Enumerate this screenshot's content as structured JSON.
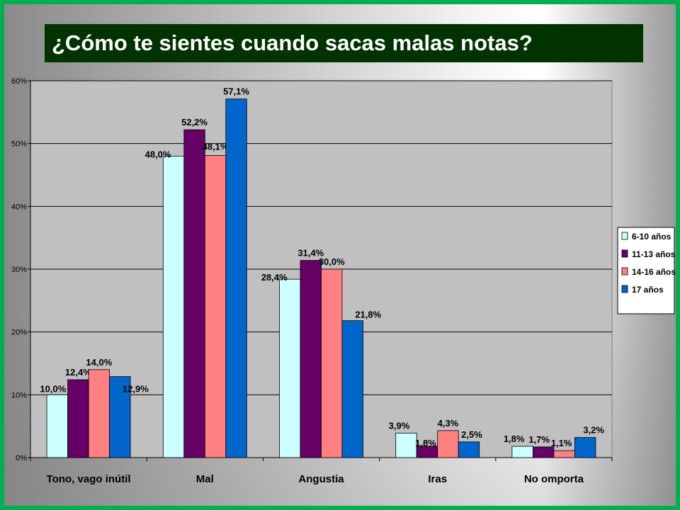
{
  "slide": {
    "title": "¿Cómo te sientes cuando sacas malas notas?"
  },
  "chart_data": {
    "type": "bar",
    "categories": [
      "Tono, vago inútil",
      "Mal",
      "Angustia",
      "Iras",
      "No omporta"
    ],
    "series": [
      {
        "name": "6-10 años",
        "color": "#ccffff",
        "values": [
          10.0,
          48.0,
          28.4,
          3.9,
          1.8
        ],
        "labels": [
          "10,0%",
          "48,0%",
          "28,4%",
          "3,9%",
          "1,8%"
        ]
      },
      {
        "name": "11-13 años",
        "color": "#660066",
        "values": [
          12.4,
          52.2,
          31.4,
          1.8,
          1.7
        ],
        "labels": [
          "12,4%",
          "52,2%",
          "31,4%",
          "1,8%",
          "1,7%"
        ]
      },
      {
        "name": "14-16 años",
        "color": "#ff8080",
        "values": [
          14.0,
          48.1,
          30.0,
          4.3,
          1.1
        ],
        "labels": [
          "14,0%",
          "48,1%",
          "30,0%",
          "4,3%",
          "1,1%"
        ]
      },
      {
        "name": "17 años",
        "color": "#0066cc",
        "values": [
          12.9,
          57.1,
          21.8,
          2.5,
          3.2
        ],
        "labels": [
          "12,9%",
          "57,1%",
          "21,8%",
          "2,5%",
          "3,2%"
        ]
      }
    ],
    "ylim": [
      0,
      60
    ],
    "yticks": [
      0,
      10,
      20,
      30,
      40,
      50,
      60
    ],
    "ytick_labels": [
      "0%",
      "10%",
      "20%",
      "30%",
      "40%",
      "50%",
      "60%"
    ],
    "grid": true,
    "legend_position": "right",
    "plot_background": "#c0c0c0"
  }
}
